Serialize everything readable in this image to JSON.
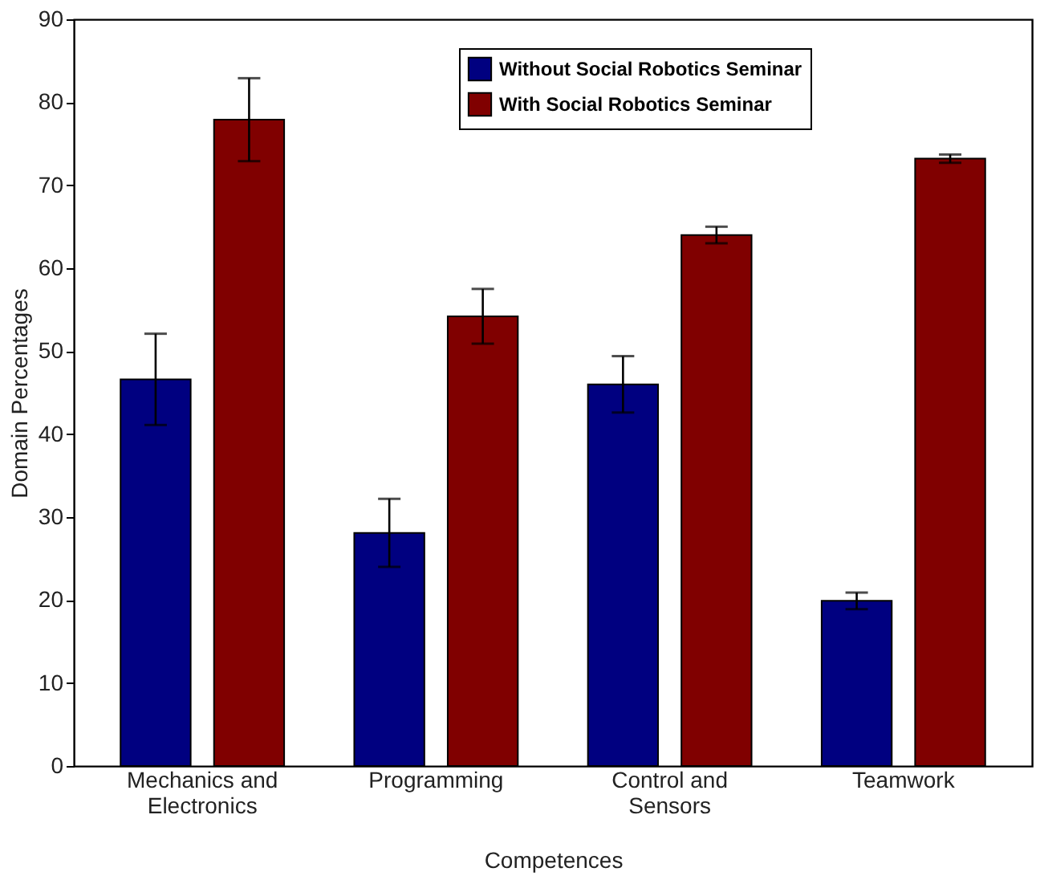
{
  "chart_data": {
    "type": "bar",
    "xlabel": "Competences",
    "ylabel": "Domain Percentages",
    "categories": [
      "Mechanics and Electronics",
      "Programming",
      "Control and Sensors",
      "Teamwork"
    ],
    "series": [
      {
        "name": "Without Social Robotics Seminar",
        "color": "#000080",
        "values": [
          46.6,
          28.1,
          46.0,
          19.9
        ],
        "errors": [
          5.5,
          4.1,
          3.4,
          1.0
        ]
      },
      {
        "name": "With Social Robotics Seminar",
        "color": "#800000",
        "values": [
          77.9,
          54.2,
          64.0,
          73.2
        ],
        "errors": [
          5.0,
          3.3,
          1.0,
          0.5
        ]
      }
    ],
    "ylim": [
      0,
      90
    ],
    "yticks": [
      0,
      10,
      20,
      30,
      40,
      50,
      60,
      70,
      80,
      90
    ],
    "grid": false,
    "legend": "top right"
  }
}
